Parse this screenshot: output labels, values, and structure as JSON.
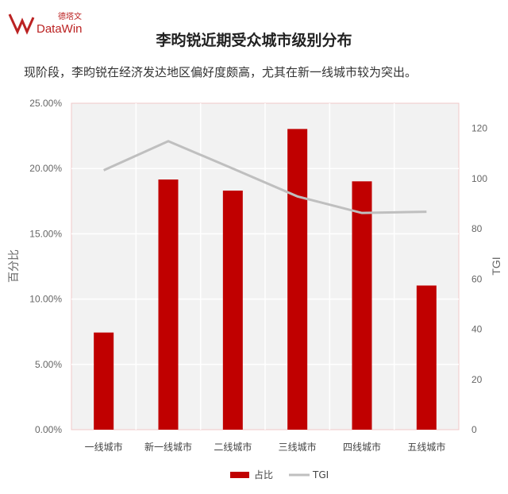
{
  "logo": {
    "cn": "德塔文",
    "en": "DataWin"
  },
  "title": "李昀锐近期受众城市级别分布",
  "subtitle": "现阶段，李昀锐在经济发达地区偏好度颇高，尤其在新一线城市较为突出。",
  "chart_data": {
    "type": "bar+line",
    "title": "李昀锐近期受众城市级别分布",
    "categories": [
      "一线城市",
      "新一线城市",
      "二线城市",
      "三线城市",
      "四线城市",
      "五线城市"
    ],
    "series": [
      {
        "name": "占比",
        "type": "bar",
        "axis": "left",
        "color": "#c00000",
        "values": [
          7.44,
          19.16,
          18.31,
          23.03,
          19.02,
          11.04
        ]
      },
      {
        "name": "TGI",
        "type": "line",
        "axis": "right",
        "color": "#bfbfbf",
        "values": [
          103.3,
          114.9,
          104,
          92.9,
          86.3,
          86.8
        ]
      }
    ],
    "ylabel": "百分比",
    "y2label": "TGI",
    "ylim": [
      0,
      25
    ],
    "yticks": [
      "0.00%",
      "5.00%",
      "10.00%",
      "15.00%",
      "20.00%",
      "25.00%"
    ],
    "y2lim": [
      0,
      130
    ],
    "y2ticks": [
      "0",
      "20",
      "40",
      "60",
      "80",
      "100",
      "120"
    ],
    "grid": true,
    "legend": "bottom"
  }
}
